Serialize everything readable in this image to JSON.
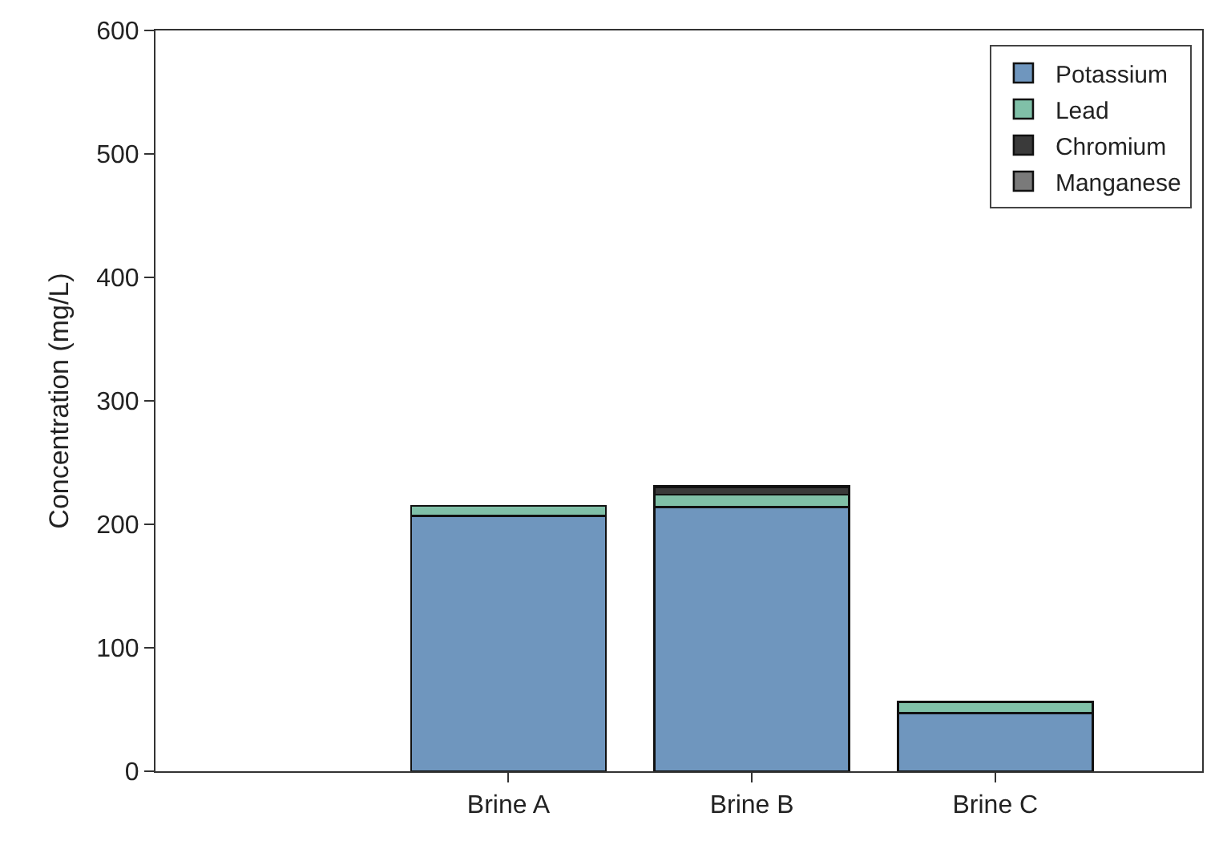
{
  "chart_data": {
    "type": "bar",
    "stacked": true,
    "ylabel": "Concentration (mg/L)",
    "categories": [
      "Brine A",
      "Brine B",
      "Brine C"
    ],
    "series": [
      {
        "name": "Potassium",
        "color": "#6f96be",
        "values": [
          207,
          214,
          47
        ]
      },
      {
        "name": "Lead",
        "color": "#80c0a8",
        "values": [
          8,
          10,
          9
        ]
      },
      {
        "name": "Chromium",
        "color": "#3a3a3a",
        "values": [
          null,
          6,
          null
        ]
      },
      {
        "name": "Manganese",
        "color": "#7a7a7a",
        "values": [
          null,
          1,
          null
        ]
      }
    ],
    "ylim": [
      0,
      600
    ],
    "yticks": [
      0,
      100,
      200,
      300,
      400,
      500,
      600
    ],
    "grid": false,
    "legend": "top right"
  }
}
